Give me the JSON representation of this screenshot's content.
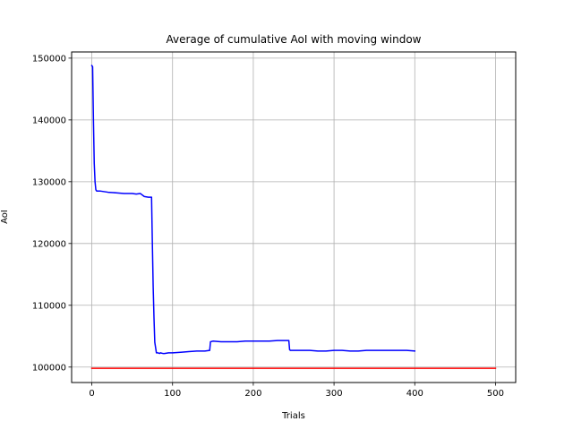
{
  "chart_data": {
    "type": "line",
    "title": "Average of cumulative AoI with moving window",
    "xlabel": "Trials",
    "ylabel": "AoI",
    "xlim": [
      -25,
      525
    ],
    "ylim": [
      97500,
      151000
    ],
    "xticks": [
      0,
      100,
      200,
      300,
      400,
      500
    ],
    "yticks": [
      100000,
      110000,
      120000,
      130000,
      140000,
      150000
    ],
    "grid": true,
    "series": [
      {
        "color": "#0000ff",
        "x": [
          0,
          1,
          2,
          3,
          4,
          5,
          6,
          10,
          20,
          30,
          40,
          50,
          55,
          60,
          65,
          70,
          74,
          75,
          76,
          77,
          78,
          80,
          82,
          84,
          85,
          88,
          90,
          95,
          100,
          110,
          120,
          130,
          140,
          146,
          147,
          150,
          160,
          170,
          180,
          190,
          200,
          210,
          220,
          230,
          240,
          244,
          245,
          246,
          250,
          260,
          270,
          280,
          290,
          300,
          310,
          320,
          330,
          340,
          350,
          360,
          370,
          380,
          390,
          400
        ],
        "y": [
          148800,
          148600,
          140000,
          133000,
          130000,
          128700,
          128500,
          128500,
          128300,
          128200,
          128100,
          128100,
          128000,
          128100,
          127600,
          127500,
          127500,
          120000,
          113000,
          108000,
          104000,
          102300,
          102300,
          102200,
          102300,
          102200,
          102200,
          102300,
          102300,
          102400,
          102500,
          102600,
          102600,
          102700,
          104100,
          104200,
          104100,
          104100,
          104100,
          104200,
          104200,
          104200,
          104200,
          104300,
          104300,
          104300,
          102800,
          102700,
          102700,
          102700,
          102700,
          102600,
          102600,
          102700,
          102700,
          102600,
          102600,
          102700,
          102700,
          102700,
          102700,
          102700,
          102700,
          102600
        ]
      },
      {
        "color": "#ff0000",
        "x": [
          0,
          500
        ],
        "y": [
          99800,
          99800
        ]
      }
    ]
  }
}
